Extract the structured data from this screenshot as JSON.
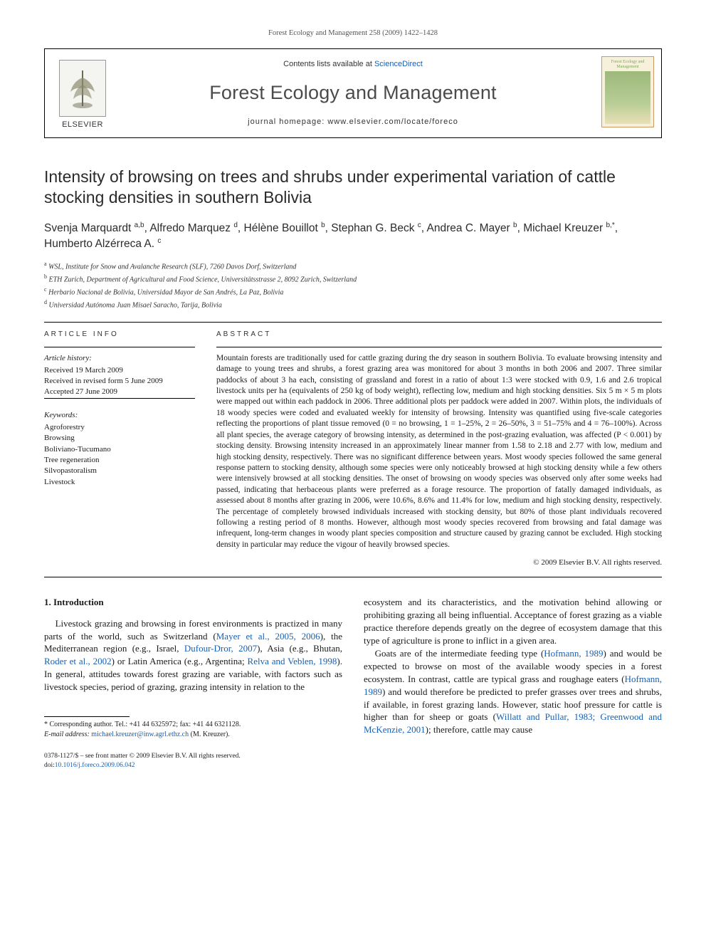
{
  "page_ref": "Forest Ecology and Management 258 (2009) 1422–1428",
  "banner": {
    "contents_line_prefix": "Contents lists available at ",
    "contents_link": "ScienceDirect",
    "journal": "Forest Ecology and Management",
    "homepage_prefix": "journal homepage: ",
    "homepage_url": "www.elsevier.com/locate/foreco",
    "publisher_label": "ELSEVIER",
    "cover_label": "Forest Ecology and Management"
  },
  "title": "Intensity of browsing on trees and shrubs under experimental variation of cattle stocking densities in southern Bolivia",
  "authors_html": "Svenja Marquardt <sup>a,b</sup>, Alfredo Marquez <sup>d</sup>, Hélène Bouillot <sup>b</sup>, Stephan G. Beck <sup>c</sup>, Andrea C. Mayer <sup>b</sup>, Michael Kreuzer <sup>b,*</sup>, Humberto Alzérreca A. <sup>c</sup>",
  "affiliations": [
    {
      "sup": "a",
      "text": "WSL, Institute for Snow and Avalanche Research (SLF), 7260 Davos Dorf, Switzerland"
    },
    {
      "sup": "b",
      "text": "ETH Zurich, Department of Agricultural and Food Science, Universitätsstrasse 2, 8092 Zurich, Switzerland"
    },
    {
      "sup": "c",
      "text": "Herbario Nacional de Bolivia, Universidad Mayor de San Andrés, La Paz, Bolivia"
    },
    {
      "sup": "d",
      "text": "Universidad Autónoma Juan Misael Saracho, Tarija, Bolivia"
    }
  ],
  "article_info": {
    "heading": "ARTICLE INFO",
    "history_label": "Article history:",
    "history": [
      "Received 19 March 2009",
      "Received in revised form 5 June 2009",
      "Accepted 27 June 2009"
    ],
    "keywords_label": "Keywords:",
    "keywords": [
      "Agroforestry",
      "Browsing",
      "Boliviano-Tucumano",
      "Tree regeneration",
      "Silvopastoralism",
      "Livestock"
    ]
  },
  "abstract": {
    "heading": "ABSTRACT",
    "text": "Mountain forests are traditionally used for cattle grazing during the dry season in southern Bolivia. To evaluate browsing intensity and damage to young trees and shrubs, a forest grazing area was monitored for about 3 months in both 2006 and 2007. Three similar paddocks of about 3 ha each, consisting of grassland and forest in a ratio of about 1:3 were stocked with 0.9, 1.6 and 2.6 tropical livestock units per ha (equivalents of 250 kg of body weight), reflecting low, medium and high stocking densities. Six 5 m × 5 m plots were mapped out within each paddock in 2006. Three additional plots per paddock were added in 2007. Within plots, the individuals of 18 woody species were coded and evaluated weekly for intensity of browsing. Intensity was quantified using five-scale categories reflecting the proportions of plant tissue removed (0 = no browsing, 1 = 1–25%, 2 = 26–50%, 3 = 51–75% and 4 = 76–100%). Across all plant species, the average category of browsing intensity, as determined in the post-grazing evaluation, was affected (P < 0.001) by stocking density. Browsing intensity increased in an approximately linear manner from 1.58 to 2.18 and 2.77 with low, medium and high stocking density, respectively. There was no significant difference between years. Most woody species followed the same general response pattern to stocking density, although some species were only noticeably browsed at high stocking density while a few others were intensively browsed at all stocking densities. The onset of browsing on woody species was observed only after some weeks had passed, indicating that herbaceous plants were preferred as a forage resource. The proportion of fatally damaged individuals, as assessed about 8 months after grazing in 2006, were 10.6%, 8.6% and 11.4% for low, medium and high stocking density, respectively. The percentage of completely browsed individuals increased with stocking density, but 80% of those plant individuals recovered following a resting period of 8 months. However, although most woody species recovered from browsing and fatal damage was infrequent, long-term changes in woody plant species composition and structure caused by grazing cannot be excluded. High stocking density in particular may reduce the vigour of heavily browsed species.",
    "copyright": "© 2009 Elsevier B.V. All rights reserved."
  },
  "body": {
    "section_no": "1.",
    "section_title": "Introduction",
    "p1_pre": "Livestock grazing and browsing in forest environments is practized in many parts of the world, such as Switzerland (",
    "c1": "Mayer et al., 2005, 2006",
    "p1_a": "), the Mediterranean region (e.g., Israel, ",
    "c2": "Dufour-Dror, 2007",
    "p1_b": "), Asia (e.g., Bhutan, ",
    "c3": "Roder et al., 2002",
    "p1_c": ") or Latin America (e.g., Argentina; ",
    "c4": "Relva and Veblen, 1998",
    "p1_d": "). In general, attitudes towards forest grazing are variable, with factors such as livestock species, period of grazing, grazing intensity in relation to the ",
    "p1_tail": "ecosystem and its characteristics, and the motivation behind allowing or prohibiting grazing all being influential. Acceptance of forest grazing as a viable practice therefore depends greatly on the degree of ecosystem damage that this type of agriculture is prone to inflict in a given area.",
    "p2_pre": "Goats are of the intermediate feeding type (",
    "c5": "Hofmann, 1989",
    "p2_a": ") and would be expected to browse on most of the available woody species in a forest ecosystem. In contrast, cattle are typical grass and roughage eaters (",
    "c6": "Hofmann, 1989",
    "p2_b": ") and would therefore be predicted to prefer grasses over trees and shrubs, if available, in forest grazing lands. However, static hoof pressure for cattle is higher than for sheep or goats (",
    "c7": "Willatt and Pullar, 1983; Greenwood and McKenzie, 2001",
    "p2_c": "); therefore, cattle may cause"
  },
  "footnote": {
    "corr_label": "* Corresponding author. ",
    "corr_text": "Tel.: +41 44 6325972; fax: +41 44 6321128.",
    "email_label": "E-mail address:",
    "email": "michael.kreuzer@inw.agrl.ethz.ch",
    "email_tail": " (M. Kreuzer)."
  },
  "footer": {
    "line1": "0378-1127/$ – see front matter © 2009 Elsevier B.V. All rights reserved.",
    "doi_prefix": "doi:",
    "doi": "10.1016/j.foreco.2009.06.042"
  },
  "colors": {
    "link": "#1560b3",
    "text": "#1a1a1a",
    "rule": "#000000"
  }
}
